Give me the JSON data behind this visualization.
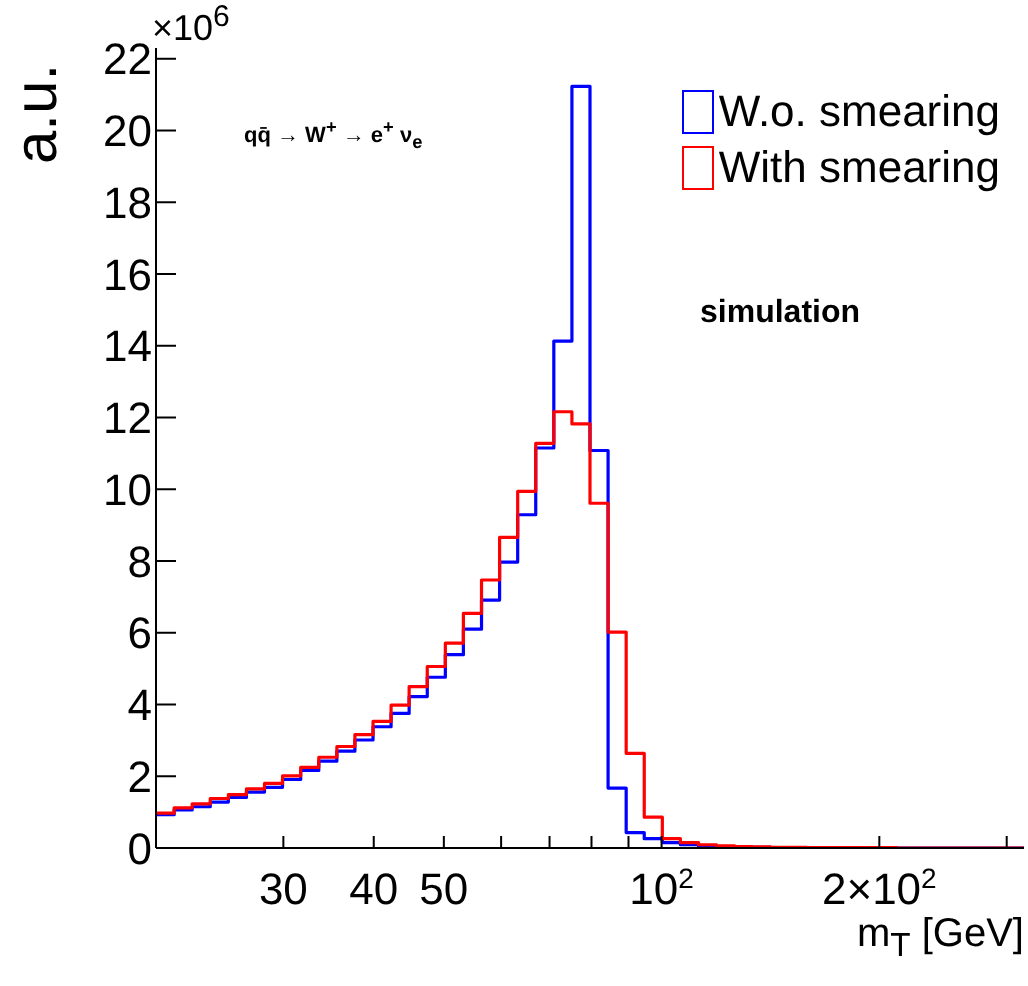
{
  "chart_data": {
    "type": "histogram",
    "ylabel": "a.u.",
    "xlabel": "m$_{T}$ [GeV]",
    "annotations": [
      "×10$^{6}$",
      "qq̄ → W$^{+}$ → e$^{+}$ ν$_{e}$",
      "simulation"
    ],
    "bins": [
      20,
      21.19,
      22.44,
      23.77,
      25.18,
      26.67,
      28.25,
      29.92,
      31.7,
      33.58,
      35.57,
      37.67,
      39.91,
      42.27,
      44.77,
      47.43,
      50.24,
      53.21,
      56.37,
      59.71,
      63.25,
      66.99,
      70.96,
      75.17,
      79.62,
      84.34,
      89.34,
      94.63,
      100.24,
      106.18,
      112.47,
      119.13,
      126.19,
      133.67,
      141.59,
      149.98,
      158.87,
      168.28,
      178.25,
      188.81,
      200,
      211.85,
      224.4,
      237.69,
      251.79,
      266.71,
      282.51,
      299.25,
      316.98
    ],
    "series": [
      {
        "name": "W.o. smearing",
        "color": "#0000ff",
        "values": [
          0.93,
          1.06,
          1.15,
          1.28,
          1.41,
          1.56,
          1.69,
          1.91,
          2.16,
          2.42,
          2.7,
          3.01,
          3.38,
          3.75,
          4.22,
          4.76,
          5.39,
          6.1,
          6.91,
          7.97,
          9.29,
          11.15,
          14.13,
          21.23,
          11.08,
          1.67,
          0.43,
          0.26,
          0.15,
          0.09,
          0.05,
          0.03,
          0.02,
          0.02,
          0.01,
          0.01,
          0.01,
          0.01,
          0.01,
          0,
          0,
          0,
          0,
          0,
          0,
          0,
          0,
          0
        ]
      },
      {
        "name": "With smearing",
        "color": "#ff0000",
        "values": [
          0.97,
          1.12,
          1.23,
          1.38,
          1.49,
          1.65,
          1.8,
          2.01,
          2.25,
          2.53,
          2.83,
          3.16,
          3.53,
          3.98,
          4.5,
          5.06,
          5.71,
          6.54,
          7.47,
          8.66,
          9.94,
          11.28,
          12.16,
          11.82,
          9.61,
          6.02,
          2.64,
          0.86,
          0.26,
          0.15,
          0.09,
          0.06,
          0.04,
          0.03,
          0.02,
          0.02,
          0.01,
          0.01,
          0.01,
          0.01,
          0.01,
          0,
          0,
          0,
          0,
          0,
          0,
          0
        ]
      }
    ],
    "log": "x",
    "xlim": [
      20,
      316.98
    ],
    "xticks": [
      {
        "value": 30,
        "label": "30"
      },
      {
        "value": 40,
        "label": "40"
      },
      {
        "value": 50,
        "label": "50"
      },
      {
        "value": 60,
        "label": null
      },
      {
        "value": 70,
        "label": null
      },
      {
        "value": 80,
        "label": null
      },
      {
        "value": 90,
        "label": null
      },
      {
        "value": 100,
        "label": "10$^{2}$"
      },
      {
        "value": 200,
        "label": "2×10$^{2}$"
      },
      {
        "value": 300,
        "label": null
      }
    ],
    "ylim": [
      0,
      22.3
    ],
    "yticks": [
      0,
      2,
      4,
      6,
      8,
      10,
      12,
      14,
      16,
      18,
      20,
      22
    ],
    "grid": false,
    "legend": "top right"
  }
}
